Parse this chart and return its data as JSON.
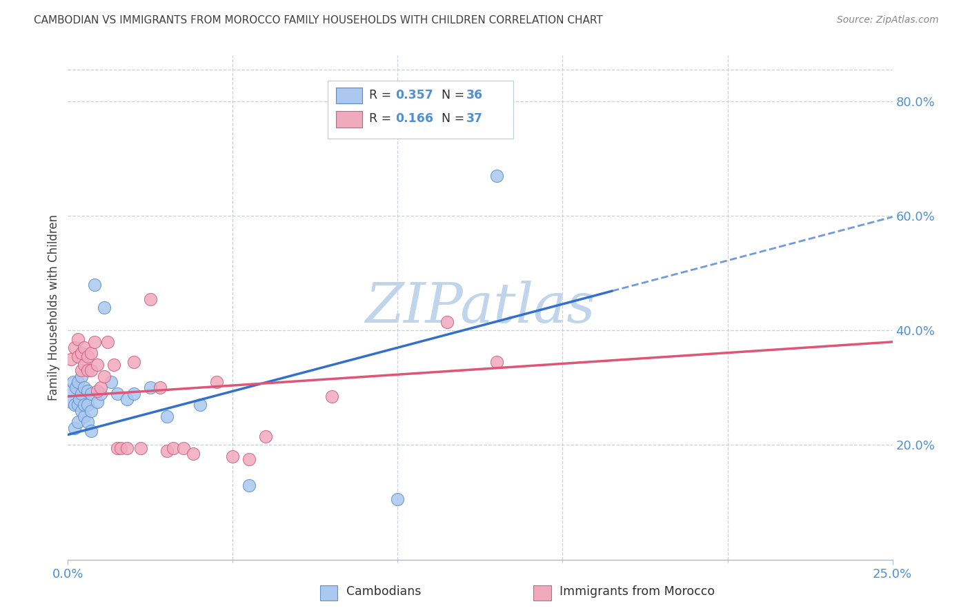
{
  "title": "CAMBODIAN VS IMMIGRANTS FROM MOROCCO FAMILY HOUSEHOLDS WITH CHILDREN CORRELATION CHART",
  "source": "Source: ZipAtlas.com",
  "ylabel": "Family Households with Children",
  "ytick_labels": [
    "20.0%",
    "40.0%",
    "60.0%",
    "80.0%"
  ],
  "ytick_values": [
    0.2,
    0.4,
    0.6,
    0.8
  ],
  "xlim": [
    0.0,
    0.25
  ],
  "ylim": [
    0.0,
    0.88
  ],
  "xtick_labels_shown": [
    "0.0%",
    "25.0%"
  ],
  "xtick_values_shown": [
    0.0,
    0.25
  ],
  "xtick_minor": [
    0.05,
    0.1,
    0.15,
    0.2
  ],
  "legend_entries": [
    {
      "label_r": "R = ",
      "label_rv": "0.357",
      "label_n": "  N = ",
      "label_nv": "36",
      "color": "#aac8f0",
      "edge_color": "#5090c8"
    },
    {
      "label_r": "R = ",
      "label_rv": "0.166",
      "label_n": "  N = ",
      "label_nv": "37",
      "color": "#f0aabe",
      "edge_color": "#d06080"
    }
  ],
  "series_cambodian": {
    "color": "#aac8f0",
    "edge_color": "#6090c8",
    "x": [
      0.0008,
      0.001,
      0.0015,
      0.002,
      0.002,
      0.0025,
      0.003,
      0.003,
      0.003,
      0.0035,
      0.004,
      0.004,
      0.004,
      0.005,
      0.005,
      0.005,
      0.006,
      0.006,
      0.006,
      0.007,
      0.007,
      0.007,
      0.008,
      0.009,
      0.01,
      0.011,
      0.013,
      0.015,
      0.018,
      0.02,
      0.025,
      0.03,
      0.04,
      0.055,
      0.1,
      0.13
    ],
    "y": [
      0.295,
      0.275,
      0.31,
      0.23,
      0.27,
      0.3,
      0.24,
      0.27,
      0.31,
      0.28,
      0.26,
      0.29,
      0.32,
      0.25,
      0.27,
      0.3,
      0.24,
      0.27,
      0.295,
      0.225,
      0.26,
      0.29,
      0.48,
      0.275,
      0.29,
      0.44,
      0.31,
      0.29,
      0.28,
      0.29,
      0.3,
      0.25,
      0.27,
      0.13,
      0.105,
      0.67
    ]
  },
  "series_morocco": {
    "color": "#f0aabe",
    "edge_color": "#d06080",
    "x": [
      0.001,
      0.002,
      0.003,
      0.003,
      0.004,
      0.004,
      0.005,
      0.005,
      0.006,
      0.006,
      0.007,
      0.007,
      0.008,
      0.009,
      0.009,
      0.01,
      0.011,
      0.012,
      0.014,
      0.015,
      0.016,
      0.018,
      0.02,
      0.022,
      0.025,
      0.028,
      0.03,
      0.032,
      0.035,
      0.038,
      0.045,
      0.05,
      0.055,
      0.06,
      0.08,
      0.115,
      0.13
    ],
    "y": [
      0.35,
      0.37,
      0.355,
      0.385,
      0.33,
      0.36,
      0.34,
      0.37,
      0.33,
      0.355,
      0.33,
      0.36,
      0.38,
      0.34,
      0.295,
      0.3,
      0.32,
      0.38,
      0.34,
      0.195,
      0.195,
      0.195,
      0.345,
      0.195,
      0.455,
      0.3,
      0.19,
      0.195,
      0.195,
      0.185,
      0.31,
      0.18,
      0.175,
      0.215,
      0.285,
      0.415,
      0.345
    ]
  },
  "regression_cambodian": {
    "x_solid_start": 0.0,
    "x_solid_end": 0.165,
    "x_dashed_start": 0.165,
    "x_dashed_end": 0.25,
    "color": "#3370cc",
    "intercept": 0.218,
    "slope": 1.52
  },
  "regression_morocco": {
    "x_start": 0.0,
    "x_end": 0.25,
    "color": "#e05575",
    "intercept": 0.285,
    "slope": 0.38
  },
  "watermark": "ZIP",
  "watermark2": "atlas",
  "watermark_color1": "#c0d4ec",
  "watermark_color2": "#c0d4ec",
  "background_color": "#ffffff",
  "grid_color": "#c8d0dc",
  "title_color": "#404040",
  "axis_tick_color": "#5090d0",
  "axis_label_color": "#404040",
  "bottom_legend": [
    {
      "label": "Cambodians",
      "color": "#aac8f0",
      "edge_color": "#6090c8"
    },
    {
      "label": "Immigrants from Morocco",
      "color": "#f0aabe",
      "edge_color": "#d06080"
    }
  ]
}
